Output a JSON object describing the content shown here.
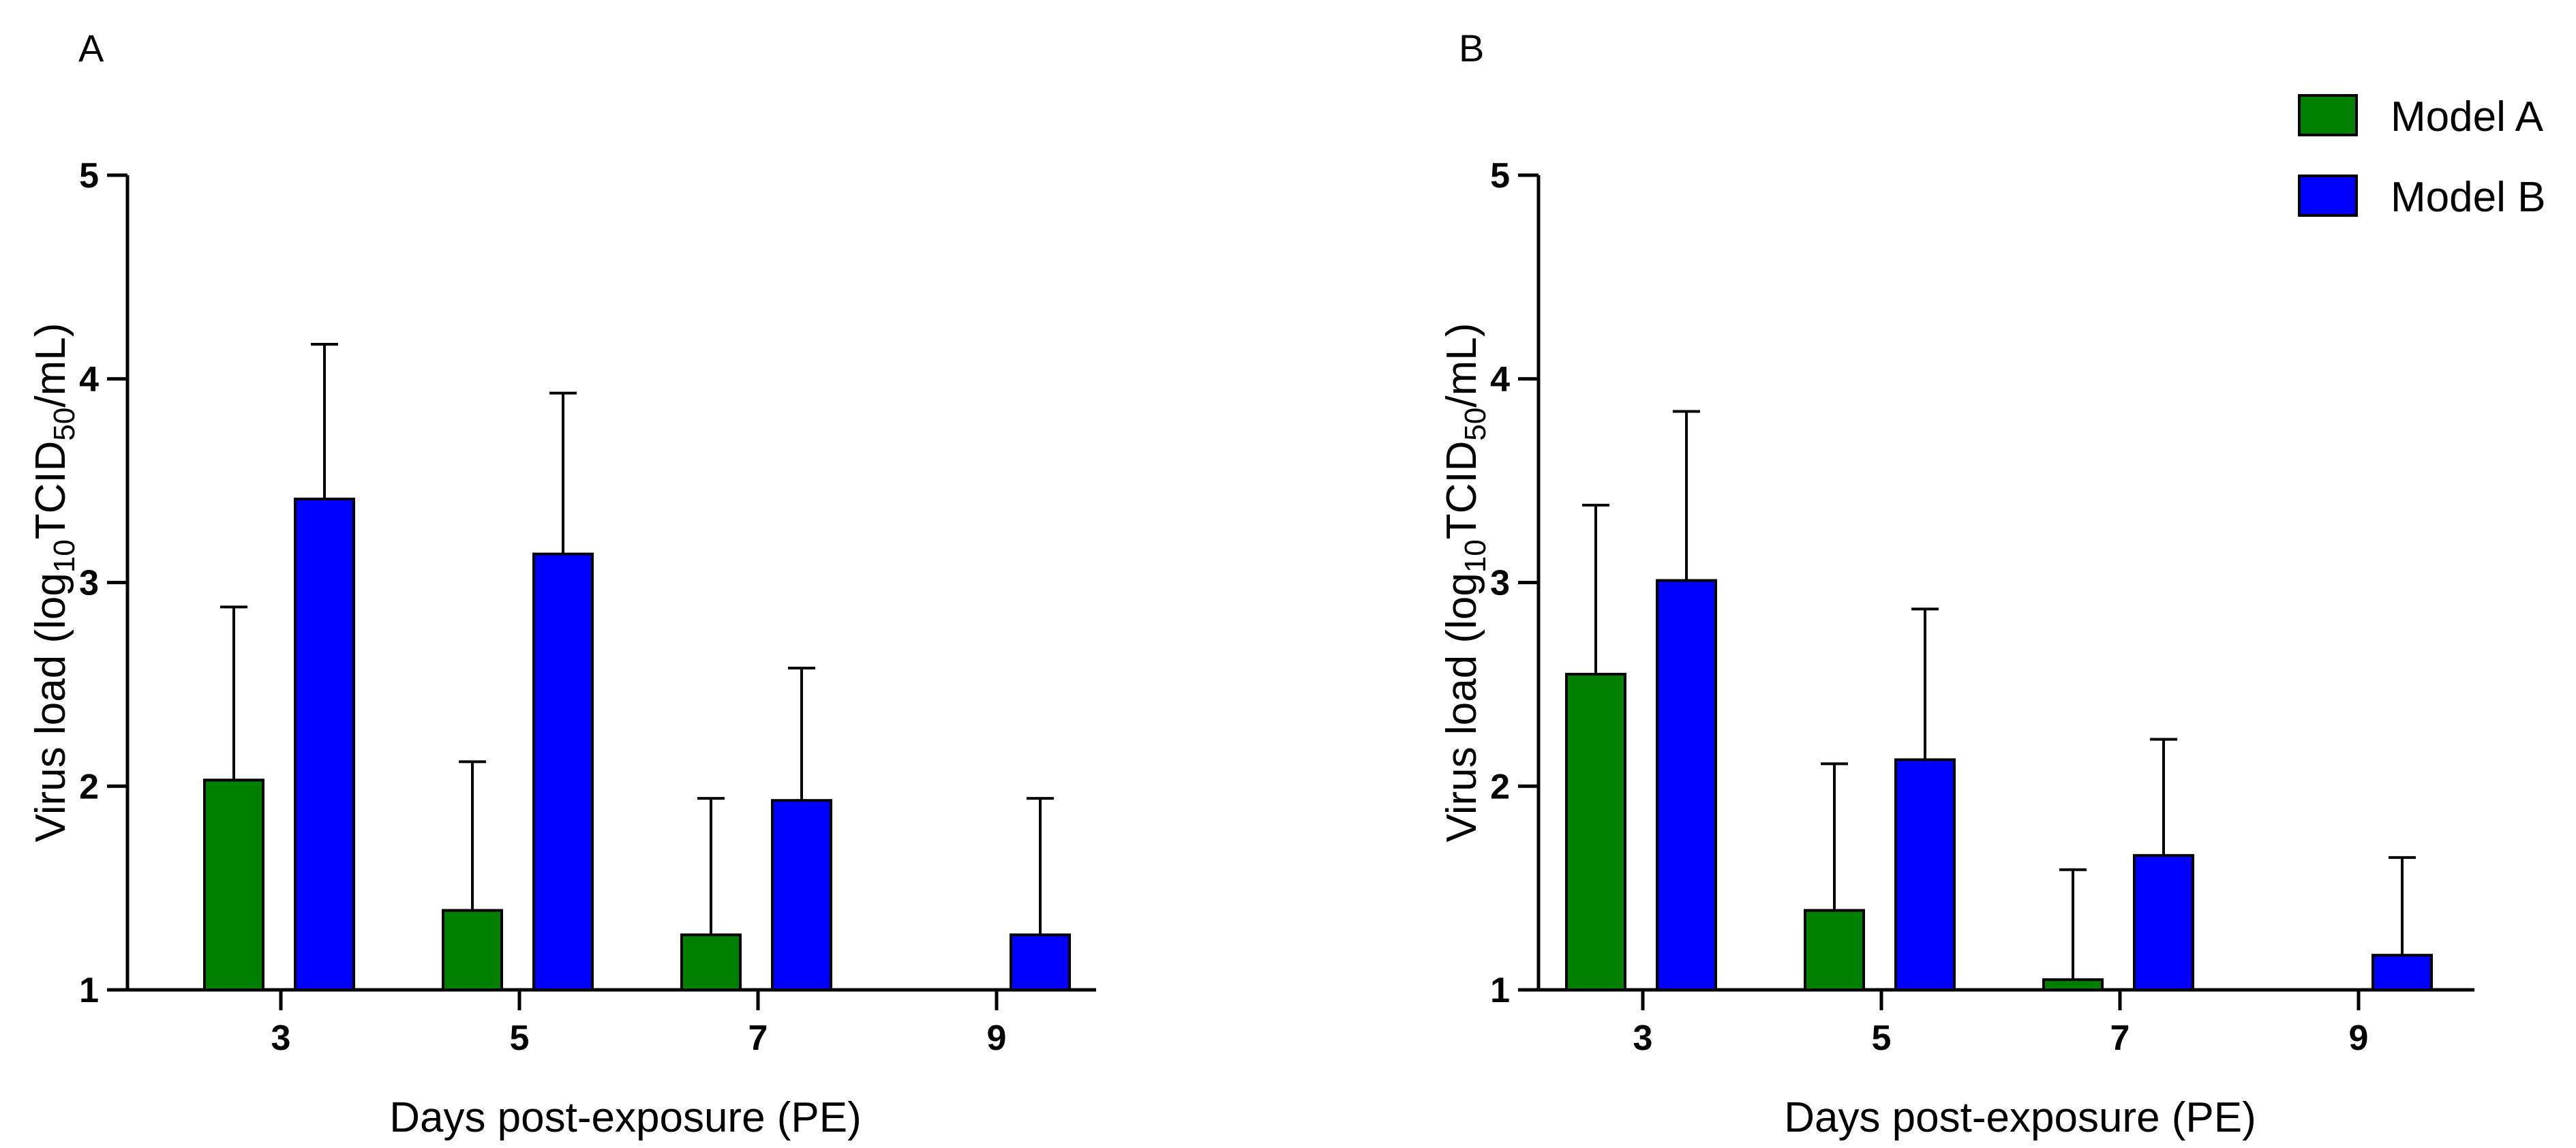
{
  "legend": [
    {
      "label": "Model A",
      "color": "#008000"
    },
    {
      "label": "Model B",
      "color": "#0000ff"
    }
  ],
  "chart_data": [
    {
      "type": "bar",
      "panel": "A",
      "categories": [
        "3",
        "5",
        "7",
        "9"
      ],
      "series": [
        {
          "name": "Model A",
          "color": "#008000",
          "values": [
            2.03,
            1.39,
            1.27,
            null
          ],
          "error_upper": [
            2.88,
            2.12,
            1.94,
            null
          ]
        },
        {
          "name": "Model B",
          "color": "#0000ff",
          "values": [
            3.41,
            3.14,
            1.93,
            1.27
          ],
          "error_upper": [
            4.17,
            3.93,
            2.58,
            1.94
          ]
        }
      ],
      "yticks": [
        "1",
        "2",
        "3",
        "4",
        "5"
      ],
      "ylim": [
        1,
        5
      ],
      "ylabel": {
        "main": "Virus load (log",
        "sub1": "10",
        "mid": "TCID",
        "sub2": "50",
        "end": "/mL)"
      },
      "xlabel": "Days post-exposure (PE)",
      "legend_position": "none"
    },
    {
      "type": "bar",
      "panel": "B",
      "categories": [
        "3",
        "5",
        "7",
        "9"
      ],
      "series": [
        {
          "name": "Model A",
          "color": "#008000",
          "values": [
            2.55,
            1.39,
            1.05,
            null
          ],
          "error_upper": [
            3.38,
            2.11,
            1.59,
            null
          ]
        },
        {
          "name": "Model B",
          "color": "#0000ff",
          "values": [
            3.01,
            2.13,
            1.66,
            1.17
          ],
          "error_upper": [
            3.84,
            2.87,
            2.23,
            1.65
          ]
        }
      ],
      "yticks": [
        "1",
        "2",
        "3",
        "4",
        "5"
      ],
      "ylim": [
        1,
        5
      ],
      "ylabel": {
        "main": "Virus load (log",
        "sub1": "10",
        "mid": "TCID",
        "sub2": "50",
        "end": "/mL)"
      },
      "xlabel": "Days post-exposure (PE)",
      "legend_position": "top-right"
    }
  ]
}
